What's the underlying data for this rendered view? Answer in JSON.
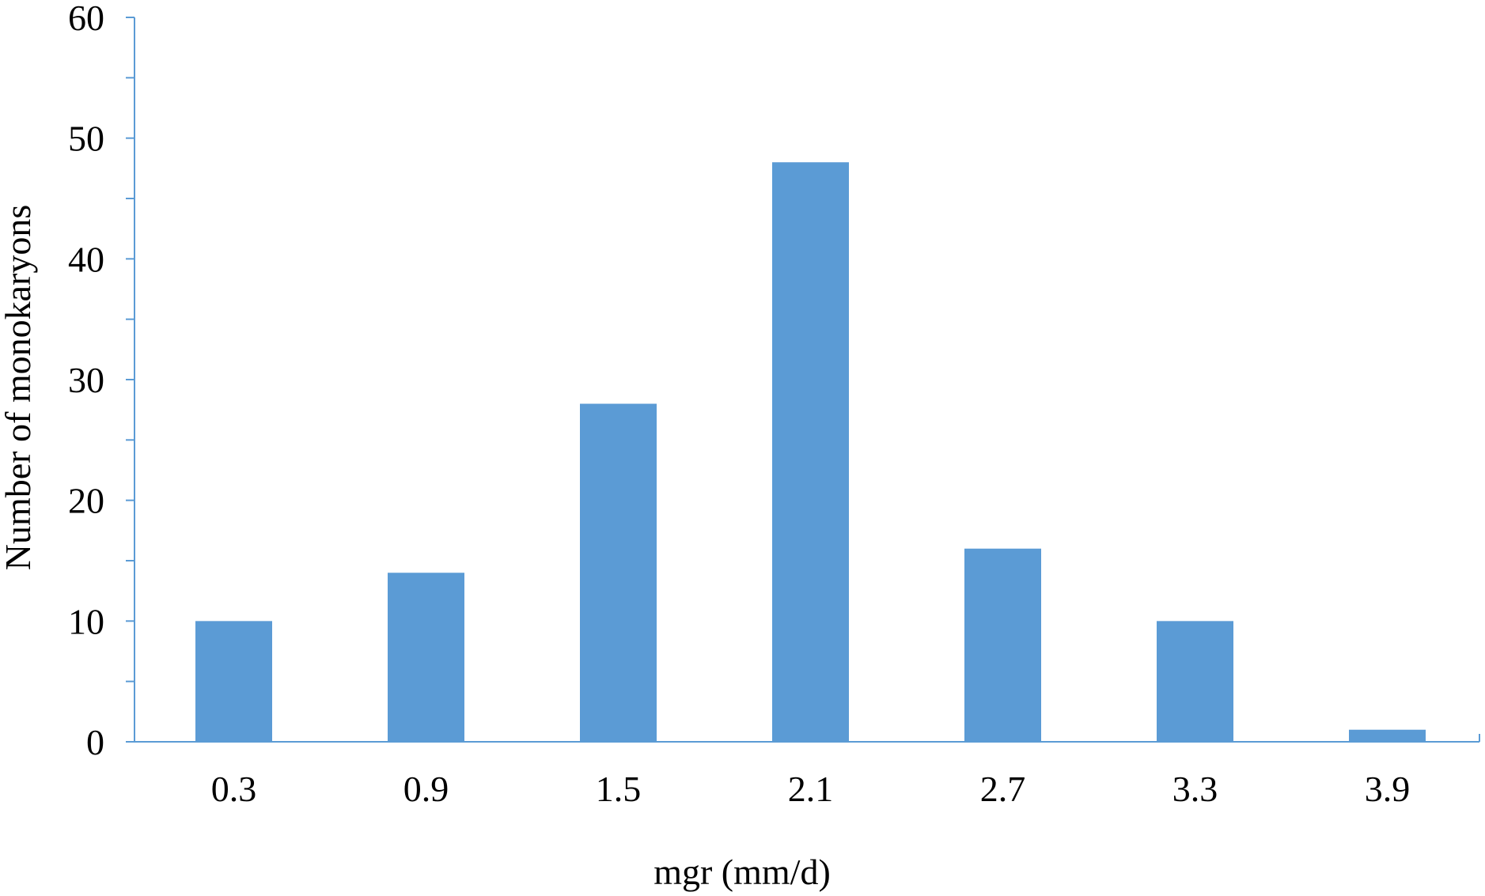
{
  "chart_data": {
    "type": "bar",
    "title": "",
    "xlabel": "mgr (mm/d)",
    "ylabel": "Number of monokaryons",
    "categories": [
      "0.3",
      "0.9",
      "1.5",
      "2.1",
      "2.7",
      "3.3",
      "3.9"
    ],
    "values": [
      10,
      14,
      28,
      48,
      16,
      10,
      1
    ],
    "ylim": [
      0,
      60
    ],
    "yticks": [
      0,
      10,
      20,
      30,
      40,
      50,
      60
    ],
    "grid": false,
    "legend": "none",
    "bar_color": "#5B9BD5",
    "axis_color": "#5B9BD5"
  }
}
